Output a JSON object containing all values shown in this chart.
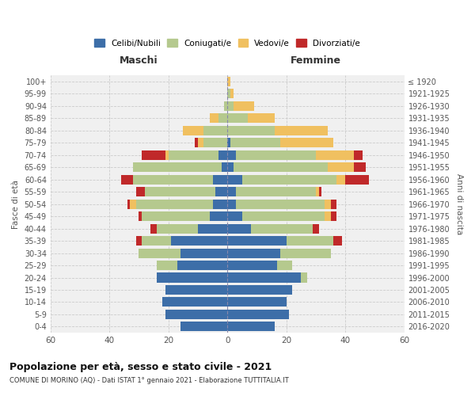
{
  "age_groups": [
    "100+",
    "95-99",
    "90-94",
    "85-89",
    "80-84",
    "75-79",
    "70-74",
    "65-69",
    "60-64",
    "55-59",
    "50-54",
    "45-49",
    "40-44",
    "35-39",
    "30-34",
    "25-29",
    "20-24",
    "15-19",
    "10-14",
    "5-9",
    "0-4"
  ],
  "birth_years": [
    "≤ 1920",
    "1921-1925",
    "1926-1930",
    "1931-1935",
    "1936-1940",
    "1941-1945",
    "1946-1950",
    "1951-1955",
    "1956-1960",
    "1961-1965",
    "1966-1970",
    "1971-1975",
    "1976-1980",
    "1981-1985",
    "1986-1990",
    "1991-1995",
    "1996-2000",
    "2001-2005",
    "2006-2010",
    "2011-2015",
    "2016-2020"
  ],
  "males": {
    "celibe": [
      0,
      0,
      0,
      0,
      0,
      0,
      3,
      2,
      5,
      4,
      5,
      6,
      10,
      19,
      16,
      17,
      24,
      21,
      22,
      21,
      16
    ],
    "coniugato": [
      0,
      0,
      1,
      3,
      8,
      8,
      17,
      30,
      27,
      24,
      26,
      23,
      14,
      10,
      14,
      7,
      0,
      0,
      0,
      0,
      0
    ],
    "vedovo": [
      0,
      0,
      0,
      3,
      7,
      2,
      1,
      0,
      0,
      0,
      2,
      0,
      0,
      0,
      0,
      0,
      0,
      0,
      0,
      0,
      0
    ],
    "divorziato": [
      0,
      0,
      0,
      0,
      0,
      1,
      8,
      0,
      4,
      3,
      1,
      1,
      2,
      2,
      0,
      0,
      0,
      0,
      0,
      0,
      0
    ]
  },
  "females": {
    "nubile": [
      0,
      0,
      0,
      0,
      0,
      1,
      3,
      2,
      5,
      3,
      3,
      5,
      8,
      20,
      18,
      17,
      25,
      22,
      20,
      21,
      16
    ],
    "coniugata": [
      0,
      1,
      2,
      7,
      16,
      17,
      27,
      32,
      32,
      27,
      30,
      28,
      21,
      16,
      17,
      5,
      2,
      0,
      0,
      0,
      0
    ],
    "vedova": [
      1,
      1,
      7,
      9,
      18,
      18,
      13,
      9,
      3,
      1,
      2,
      2,
      0,
      0,
      0,
      0,
      0,
      0,
      0,
      0,
      0
    ],
    "divorziata": [
      0,
      0,
      0,
      0,
      0,
      0,
      3,
      4,
      8,
      1,
      2,
      2,
      2,
      3,
      0,
      0,
      0,
      0,
      0,
      0,
      0
    ]
  },
  "colors": {
    "celibe": "#3d6ea8",
    "coniugato": "#b5c98e",
    "vedovo": "#f0c060",
    "divorziato": "#c0292a"
  },
  "xlim": 60,
  "title": "Popolazione per età, sesso e stato civile - 2021",
  "subtitle": "COMUNE DI MORINO (AQ) - Dati ISTAT 1° gennaio 2021 - Elaborazione TUTTITALIA.IT",
  "ylabel_left": "Fasce di età",
  "ylabel_right": "Anni di nascita",
  "xlabel_left": "Maschi",
  "xlabel_right": "Femmine",
  "background": "#f0f0f0"
}
